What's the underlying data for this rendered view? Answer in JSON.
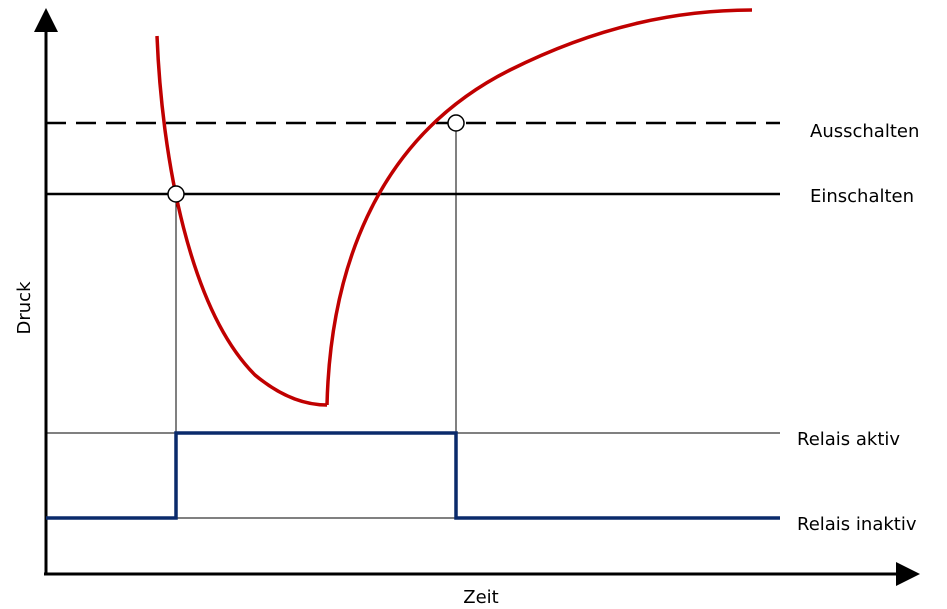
{
  "axes": {
    "y_label": "Druck",
    "x_label": "Zeit"
  },
  "levels": {
    "off_threshold": "Ausschalten",
    "on_threshold": "Einschalten",
    "relay_active": "Relais aktiv",
    "relay_inactive": "Relais inaktiv"
  },
  "colors": {
    "pressure_curve": "#c00000",
    "relay_signal": "#0a2a6b",
    "axes": "#000000"
  }
}
